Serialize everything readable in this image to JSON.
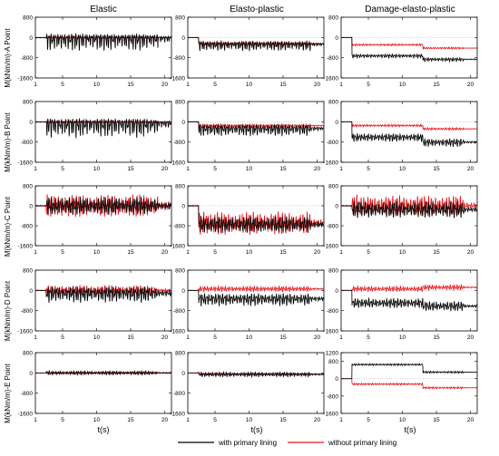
{
  "figure": {
    "column_titles": [
      "Elastic",
      "Elasto-plastic",
      "Damage-elasto-plastic"
    ],
    "row_labels": [
      "M(kNm/m)-A Point",
      "M(kNm/m)-B Point",
      "M(kNm/m)-C Point",
      "M(kNm/m)-D Point",
      "M(kNm/m)-E Point"
    ],
    "xlabel": "t(s)",
    "legend": [
      "with primary lining",
      "without primary lining"
    ],
    "colors": {
      "with": "#000000",
      "without": "#e8141b"
    }
  },
  "chart_data": {
    "type": "line",
    "layout": "5x3 grid of panels",
    "xlim": [
      1,
      21
    ],
    "x_ticks": [
      1,
      5,
      10,
      15,
      20
    ],
    "default_ylim": [
      -1600,
      800
    ],
    "default_y_ticks": [
      -1600,
      -800,
      0,
      800
    ],
    "ylim_overrides": [
      {
        "row": 4,
        "col": 2,
        "ylim": [
          -1600,
          1200
        ],
        "y_ticks": [
          -1600,
          -800,
          0,
          800,
          1200
        ]
      }
    ],
    "series_names": [
      "with primary lining",
      "without primary lining"
    ],
    "note_on_values": "values are approximate levels read from the figure; oscillations shown as amplitude",
    "panels": [
      {
        "row": 0,
        "col": 0,
        "with": {
          "base": 0,
          "amp": 380,
          "bias": -0.6
        },
        "without": {
          "base": 0,
          "amp": 50,
          "bias": -0.3
        }
      },
      {
        "row": 0,
        "col": 1,
        "with": {
          "base": -260,
          "amp": 220,
          "bias": -0.4
        },
        "without": {
          "base": -240,
          "amp": 90,
          "bias": -0.2
        }
      },
      {
        "row": 0,
        "col": 2,
        "with": {
          "base": -720,
          "base2": -860,
          "amp": 90,
          "bias": -0.2
        },
        "without": {
          "base": -290,
          "base2": -420,
          "amp": 50,
          "bias": 0
        }
      },
      {
        "row": 1,
        "col": 0,
        "with": {
          "base": -30,
          "amp": 420,
          "bias": -0.6
        },
        "without": {
          "base": 0,
          "amp": 50,
          "bias": -0.3
        }
      },
      {
        "row": 1,
        "col": 1,
        "with": {
          "base": -250,
          "amp": 260,
          "bias": -0.4
        },
        "without": {
          "base": -150,
          "amp": 90,
          "bias": -0.2
        }
      },
      {
        "row": 1,
        "col": 2,
        "with": {
          "base": -600,
          "base2": -800,
          "amp": 180,
          "bias": -0.2
        },
        "without": {
          "base": -150,
          "base2": -280,
          "amp": 60,
          "bias": 0
        }
      },
      {
        "row": 2,
        "col": 0,
        "with": {
          "base": 0,
          "amp": 420,
          "bias": 0
        },
        "without": {
          "base": 0,
          "amp": 520,
          "bias": 0
        }
      },
      {
        "row": 2,
        "col": 1,
        "with": {
          "base": -750,
          "amp": 380,
          "bias": 0
        },
        "without": {
          "base": -700,
          "amp": 520,
          "bias": 0
        }
      },
      {
        "row": 2,
        "col": 2,
        "with": {
          "base": -150,
          "amp": 380,
          "bias": 0
        },
        "without": {
          "base": 0,
          "amp": 480,
          "bias": 0
        }
      },
      {
        "row": 3,
        "col": 0,
        "with": {
          "base": -100,
          "amp": 360,
          "bias": -0.2
        },
        "without": {
          "base": 0,
          "amp": 220,
          "bias": 0
        }
      },
      {
        "row": 3,
        "col": 1,
        "with": {
          "base": -320,
          "amp": 280,
          "bias": -0.2
        },
        "without": {
          "base": 60,
          "amp": 120,
          "bias": 0
        }
      },
      {
        "row": 3,
        "col": 2,
        "with": {
          "base": -500,
          "base2": -620,
          "amp": 220,
          "bias": 0
        },
        "without": {
          "base": 60,
          "base2": 120,
          "amp": 120,
          "bias": 0
        }
      },
      {
        "row": 4,
        "col": 0,
        "with": {
          "base": 0,
          "amp": 90,
          "bias": 0
        },
        "without": {
          "base": 0,
          "amp": 70,
          "bias": 0
        }
      },
      {
        "row": 4,
        "col": 1,
        "with": {
          "base": -60,
          "amp": 110,
          "bias": 0
        },
        "without": {
          "base": -50,
          "amp": 50,
          "bias": 0
        }
      },
      {
        "row": 4,
        "col": 2,
        "with": {
          "base": 650,
          "base2": 300,
          "amp": 60,
          "bias": 0
        },
        "without": {
          "base": -250,
          "base2": -420,
          "amp": 60,
          "bias": 0
        }
      }
    ]
  }
}
